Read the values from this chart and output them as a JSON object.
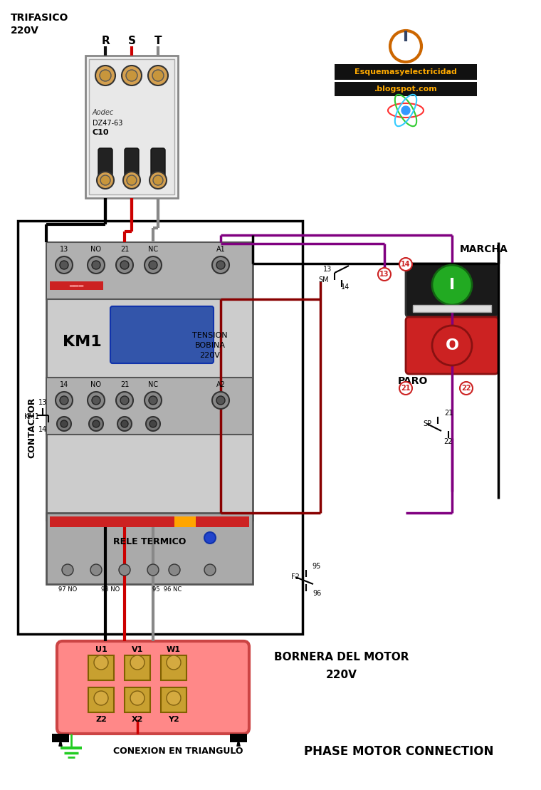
{
  "background_color": "#ffffff",
  "title": "PHASE MOTOR CONNECTION",
  "title_fontsize": 14,
  "trifasico_text": "TRIFASICO\n220V",
  "phase_labels": [
    "R",
    "S",
    "T"
  ],
  "phase_colors": [
    "#111111",
    "#cc0000",
    "#888888"
  ],
  "contactor_label": "CONTACTOR",
  "km1_label": "KM1",
  "tension_text": "TENSION\nBOBINA\n220V",
  "top_labels": [
    "13",
    "NO",
    "21",
    "NC",
    "A1"
  ],
  "bottom_labels": [
    "14",
    "NO",
    "21",
    "NC",
    "A2"
  ],
  "relay_label": "RELE TERMICO",
  "bornera_label": "BORNERA DEL MOTOR\n220V",
  "conexion_label": "CONEXION EN TRIANGULO",
  "phase_motor_text": "PHASE MOTOR CONNECTION",
  "top_terminals": [
    "U1",
    "V1",
    "W1"
  ],
  "bottom_terminals": [
    "Z2",
    "X2",
    "Y2"
  ],
  "marcha_label": "MARCHA",
  "paro_label": "PARO",
  "sm_label": "SM",
  "sp_label": "SP",
  "km1_contact": "KM1",
  "circuit_numbers": [
    "13",
    "14",
    "21",
    "22"
  ],
  "f2_label": "F2",
  "f2_terminals": [
    "95",
    "96"
  ]
}
